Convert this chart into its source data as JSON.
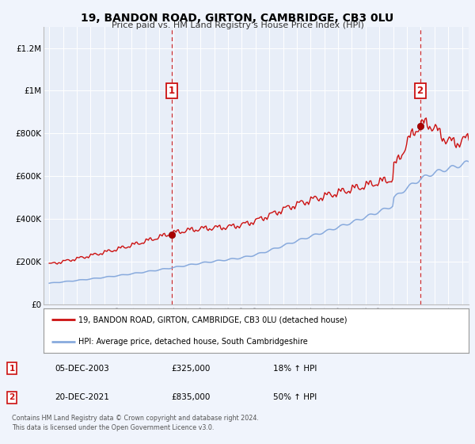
{
  "title": "19, BANDON ROAD, GIRTON, CAMBRIDGE, CB3 0LU",
  "subtitle": "Price paid vs. HM Land Registry's House Price Index (HPI)",
  "background_color": "#f0f4fc",
  "plot_bg_color": "#e8eef8",
  "red_line_color": "#cc1111",
  "blue_line_color": "#88aadd",
  "dashed_line_color": "#cc1111",
  "marker1_x": 2003.92,
  "marker1_y": 325000,
  "marker2_x": 2021.96,
  "marker2_y": 835000,
  "ylim": [
    0,
    1300000
  ],
  "xlim": [
    1994.6,
    2025.5
  ],
  "legend_entries": [
    "19, BANDON ROAD, GIRTON, CAMBRIDGE, CB3 0LU (detached house)",
    "HPI: Average price, detached house, South Cambridgeshire"
  ],
  "annotation1_label": "1",
  "annotation1_date": "05-DEC-2003",
  "annotation1_price": "£325,000",
  "annotation1_hpi": "18% ↑ HPI",
  "annotation2_label": "2",
  "annotation2_date": "20-DEC-2021",
  "annotation2_price": "£835,000",
  "annotation2_hpi": "50% ↑ HPI",
  "footer": "Contains HM Land Registry data © Crown copyright and database right 2024.\nThis data is licensed under the Open Government Licence v3.0.",
  "yticks": [
    0,
    200000,
    400000,
    600000,
    800000,
    1000000,
    1200000
  ],
  "ytick_labels": [
    "£0",
    "£200K",
    "£400K",
    "£600K",
    "£800K",
    "£1M",
    "£1.2M"
  ]
}
